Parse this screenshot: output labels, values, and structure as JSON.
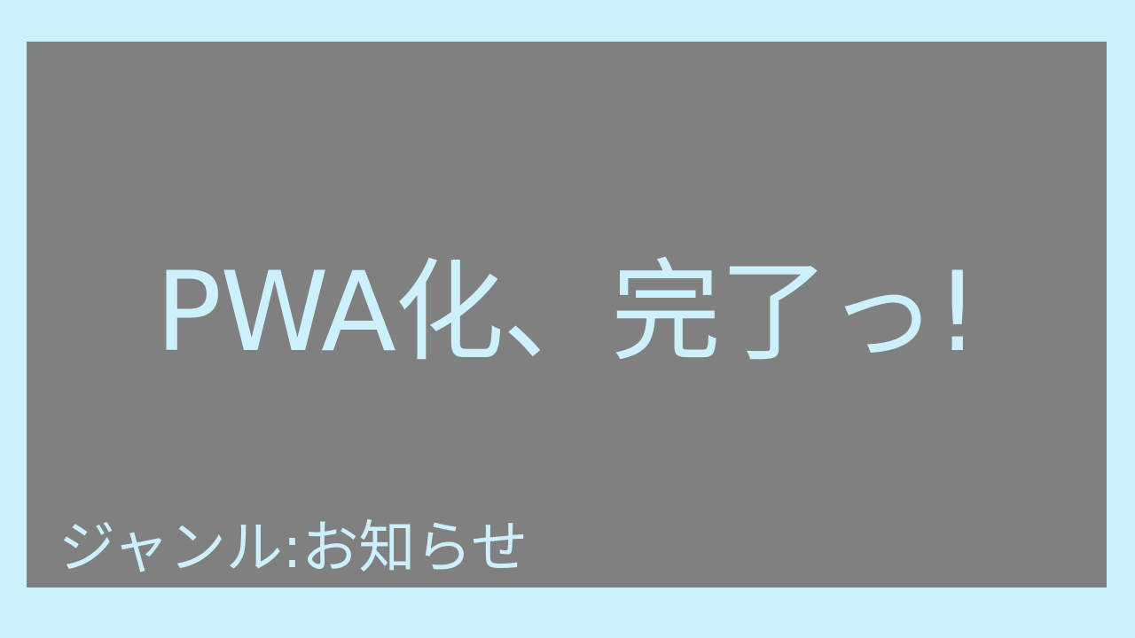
{
  "colors": {
    "page_background": "#cdf0fd",
    "card_background": "#808080",
    "text": "#cdf0fd"
  },
  "card": {
    "title": "PWA化、完了っ!",
    "genre": "ジャンル:お知らせ"
  }
}
